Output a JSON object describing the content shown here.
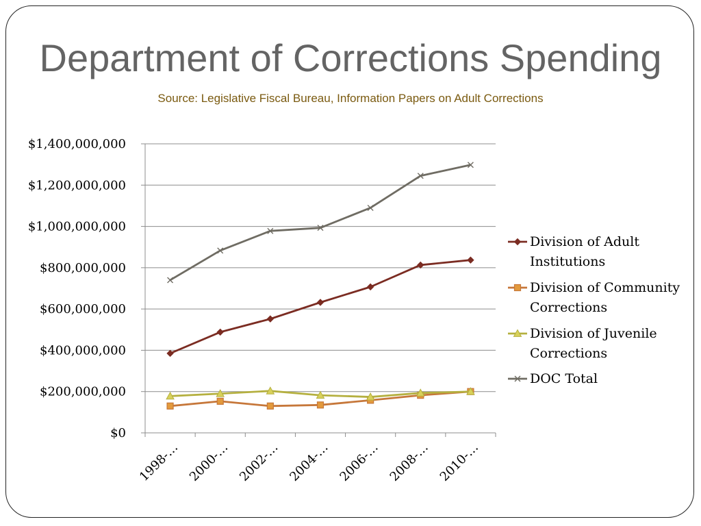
{
  "slide": {
    "title": "Department of Corrections Spending",
    "subtitle": "Source: Legislative Fiscal Bureau, Information Papers on Adult Corrections"
  },
  "colors": {
    "title": "#646464",
    "subtitle": "#7a5a10",
    "gridline": "#8c8c8c",
    "axis": "#8c8c8c"
  },
  "chart_data": {
    "type": "line",
    "title": "",
    "xlabel": "",
    "ylabel": "",
    "categories": [
      "1998-…",
      "2000-…",
      "2002-…",
      "2004-…",
      "2006-…",
      "2008-…",
      "2010-…"
    ],
    "ylim": [
      0,
      1400000000
    ],
    "ytick_values": [
      0,
      200000000,
      400000000,
      600000000,
      800000000,
      1000000000,
      1200000000,
      1400000000
    ],
    "ytick_labels": [
      "$0",
      "$200,000,000",
      "$400,000,000",
      "$600,000,000",
      "$800,000,000",
      "$1,000,000,000",
      "$1,200,000,000",
      "$1,400,000,000"
    ],
    "grid": true,
    "legend_position": "right",
    "series": [
      {
        "name": "Division of Adult Institutions",
        "legend_lines": [
          "Division of Adult",
          "Institutions"
        ],
        "color": "#7b2c22",
        "marker": "diamond",
        "values": [
          385000000,
          488000000,
          552000000,
          632000000,
          707000000,
          813000000,
          837000000
        ]
      },
      {
        "name": "Division of Community Corrections",
        "legend_lines": [
          "Division of Community",
          "Corrections"
        ],
        "color": "#c6773a",
        "marker": "square",
        "values": [
          130000000,
          153000000,
          130000000,
          135000000,
          158000000,
          182000000,
          200000000
        ]
      },
      {
        "name": "Division of Juvenile Corrections",
        "legend_lines": [
          "Division of Juvenile",
          "Corrections"
        ],
        "color": "#b5b040",
        "marker": "triangle",
        "values": [
          178000000,
          190000000,
          203000000,
          182000000,
          174000000,
          193000000,
          200000000
        ]
      },
      {
        "name": "DOC Total",
        "legend_lines": [
          "DOC Total"
        ],
        "color": "#6f6c63",
        "marker": "x",
        "values": [
          740000000,
          883000000,
          978000000,
          993000000,
          1090000000,
          1245000000,
          1298000000
        ]
      }
    ]
  }
}
